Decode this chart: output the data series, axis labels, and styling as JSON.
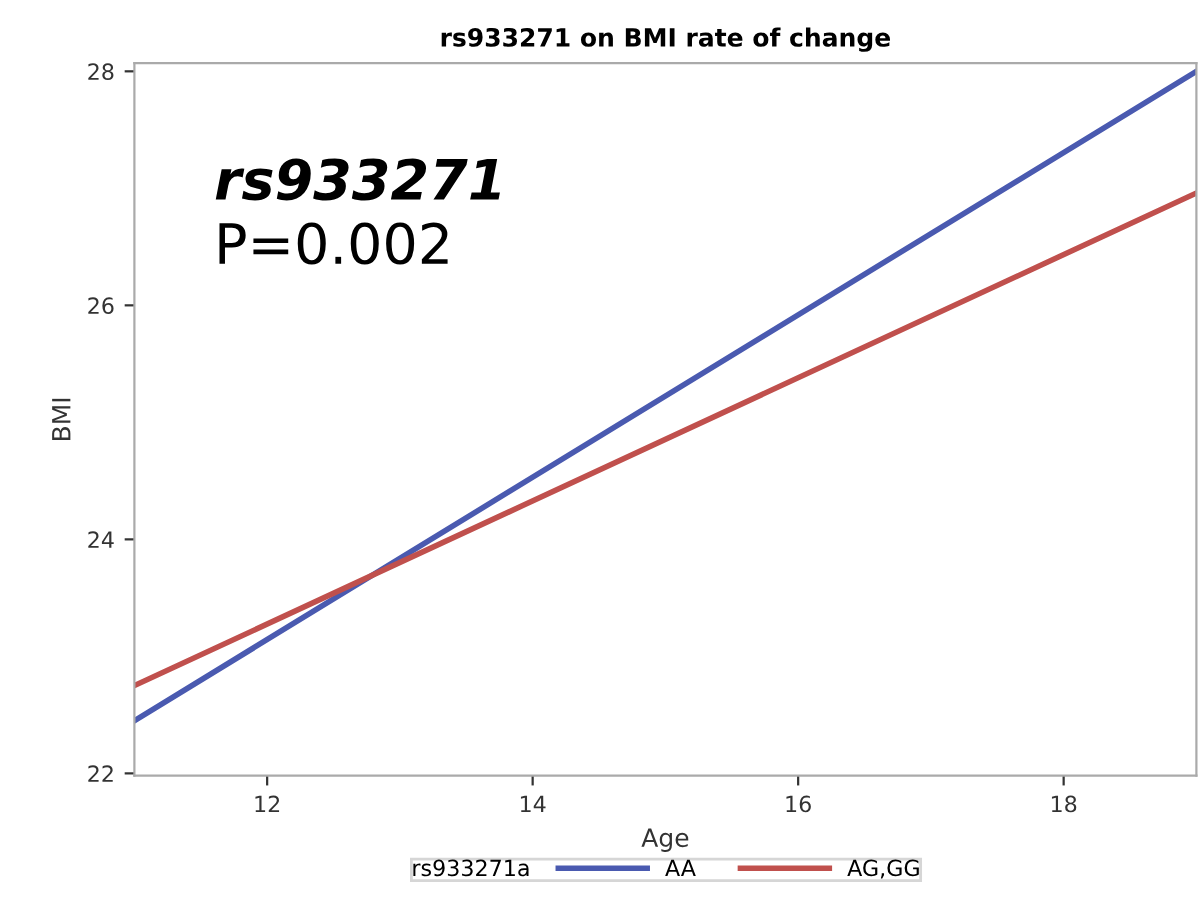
{
  "chart_data": {
    "type": "line",
    "title": "rs933271 on BMI rate of change",
    "xlabel": "Age",
    "ylabel": "BMI",
    "legend_title": "rs933271a",
    "annotations": [
      "rs933271",
      "P=0.002"
    ],
    "x": [
      11,
      19
    ],
    "series": [
      {
        "name": "AA",
        "color": "#4a5ab0",
        "values": [
          22.45,
          28.0
        ]
      },
      {
        "name": "AG,GG",
        "color": "#c0504d",
        "values": [
          22.75,
          26.96
        ]
      }
    ],
    "xlim": [
      11,
      19
    ],
    "ylim": [
      21.98,
      28.07
    ],
    "xticks": [
      12,
      14,
      16,
      18
    ],
    "yticks": [
      22,
      24,
      26,
      28
    ],
    "grid": false,
    "legend": "bottom",
    "marker": "none",
    "line_style": "solid"
  }
}
